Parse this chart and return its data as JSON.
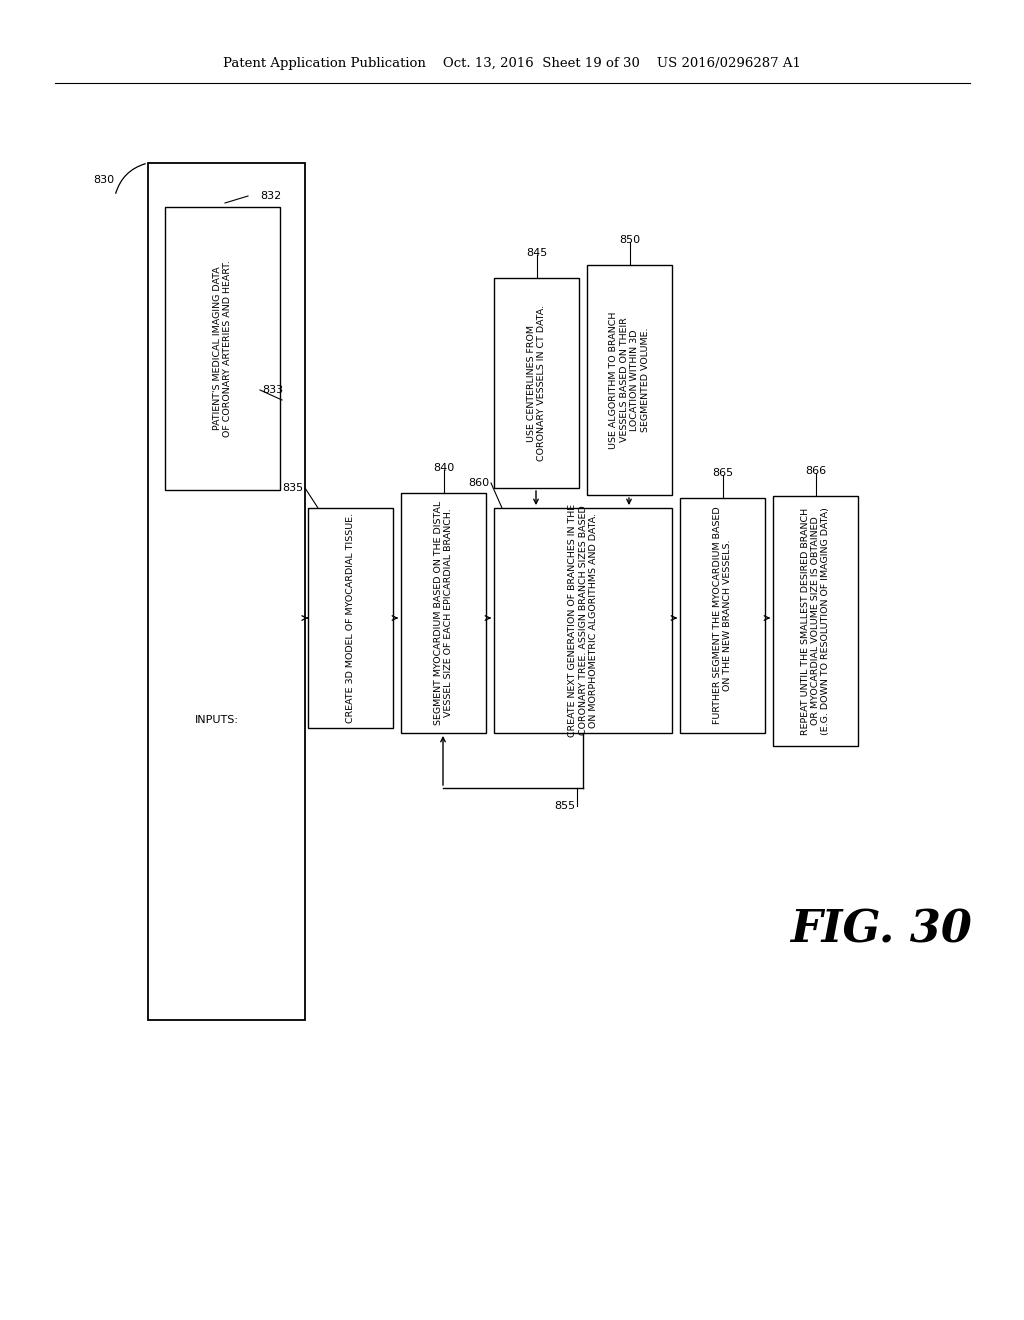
{
  "bg_color": "#ffffff",
  "header_text": "Patent Application Publication    Oct. 13, 2016  Sheet 19 of 30    US 2016/0296287 A1",
  "fig_label": "FIG. 30",
  "box_832_text": "PATIENT'S MEDICAL IMAGING DATA\nOF CORONARY ARTERIES AND HEART.",
  "box_835_text": "CREATE 3D MODEL OF MYOCARDIAL TISSUE.",
  "box_840_text": "SEGMENT MYOCARDIUM BASED ON THE DISTAL\nVESSEL SIZE OF EACH EPICARDIAL BRANCH.",
  "box_845_text": "USE CENTERLINES FROM\nCORONARY VESSELS IN CT DATA.",
  "box_850_text": "USE ALGORITHM TO BRANCH\nVESSELS BASED ON THEIR\nLOCATION WITHIN 3D\nSEGMENTED VOLUME.",
  "box_860_text": "CREATE NEXT GENERATION OF BRANCHES IN THE\nCORONARY TREE. ASSIGN BRANCH SIZES BASED\nON MORPHOMETRIC ALGORITHMS AND DATA.",
  "box_865_text": "FURTHER SEGMENT THE MYOCARDIUM BASED\nON THE NEW BRANCH VESSELS.",
  "box_866_text": "REPEAT UNTIL THE SMALLEST DESIRED BRANCH\nOR MYOCARDIAL VOLUME SIZE IS OBTAINED\n(E.G. DOWN TO RESOLUTION OF IMAGING DATA)",
  "inputs_text": "INPUTS:",
  "lbl_830": "830",
  "lbl_832": "832",
  "lbl_833": "833",
  "lbl_835": "835",
  "lbl_840": "840",
  "lbl_845": "845",
  "lbl_850": "850",
  "lbl_855": "855",
  "lbl_860": "860",
  "lbl_865": "865",
  "lbl_866": "866"
}
